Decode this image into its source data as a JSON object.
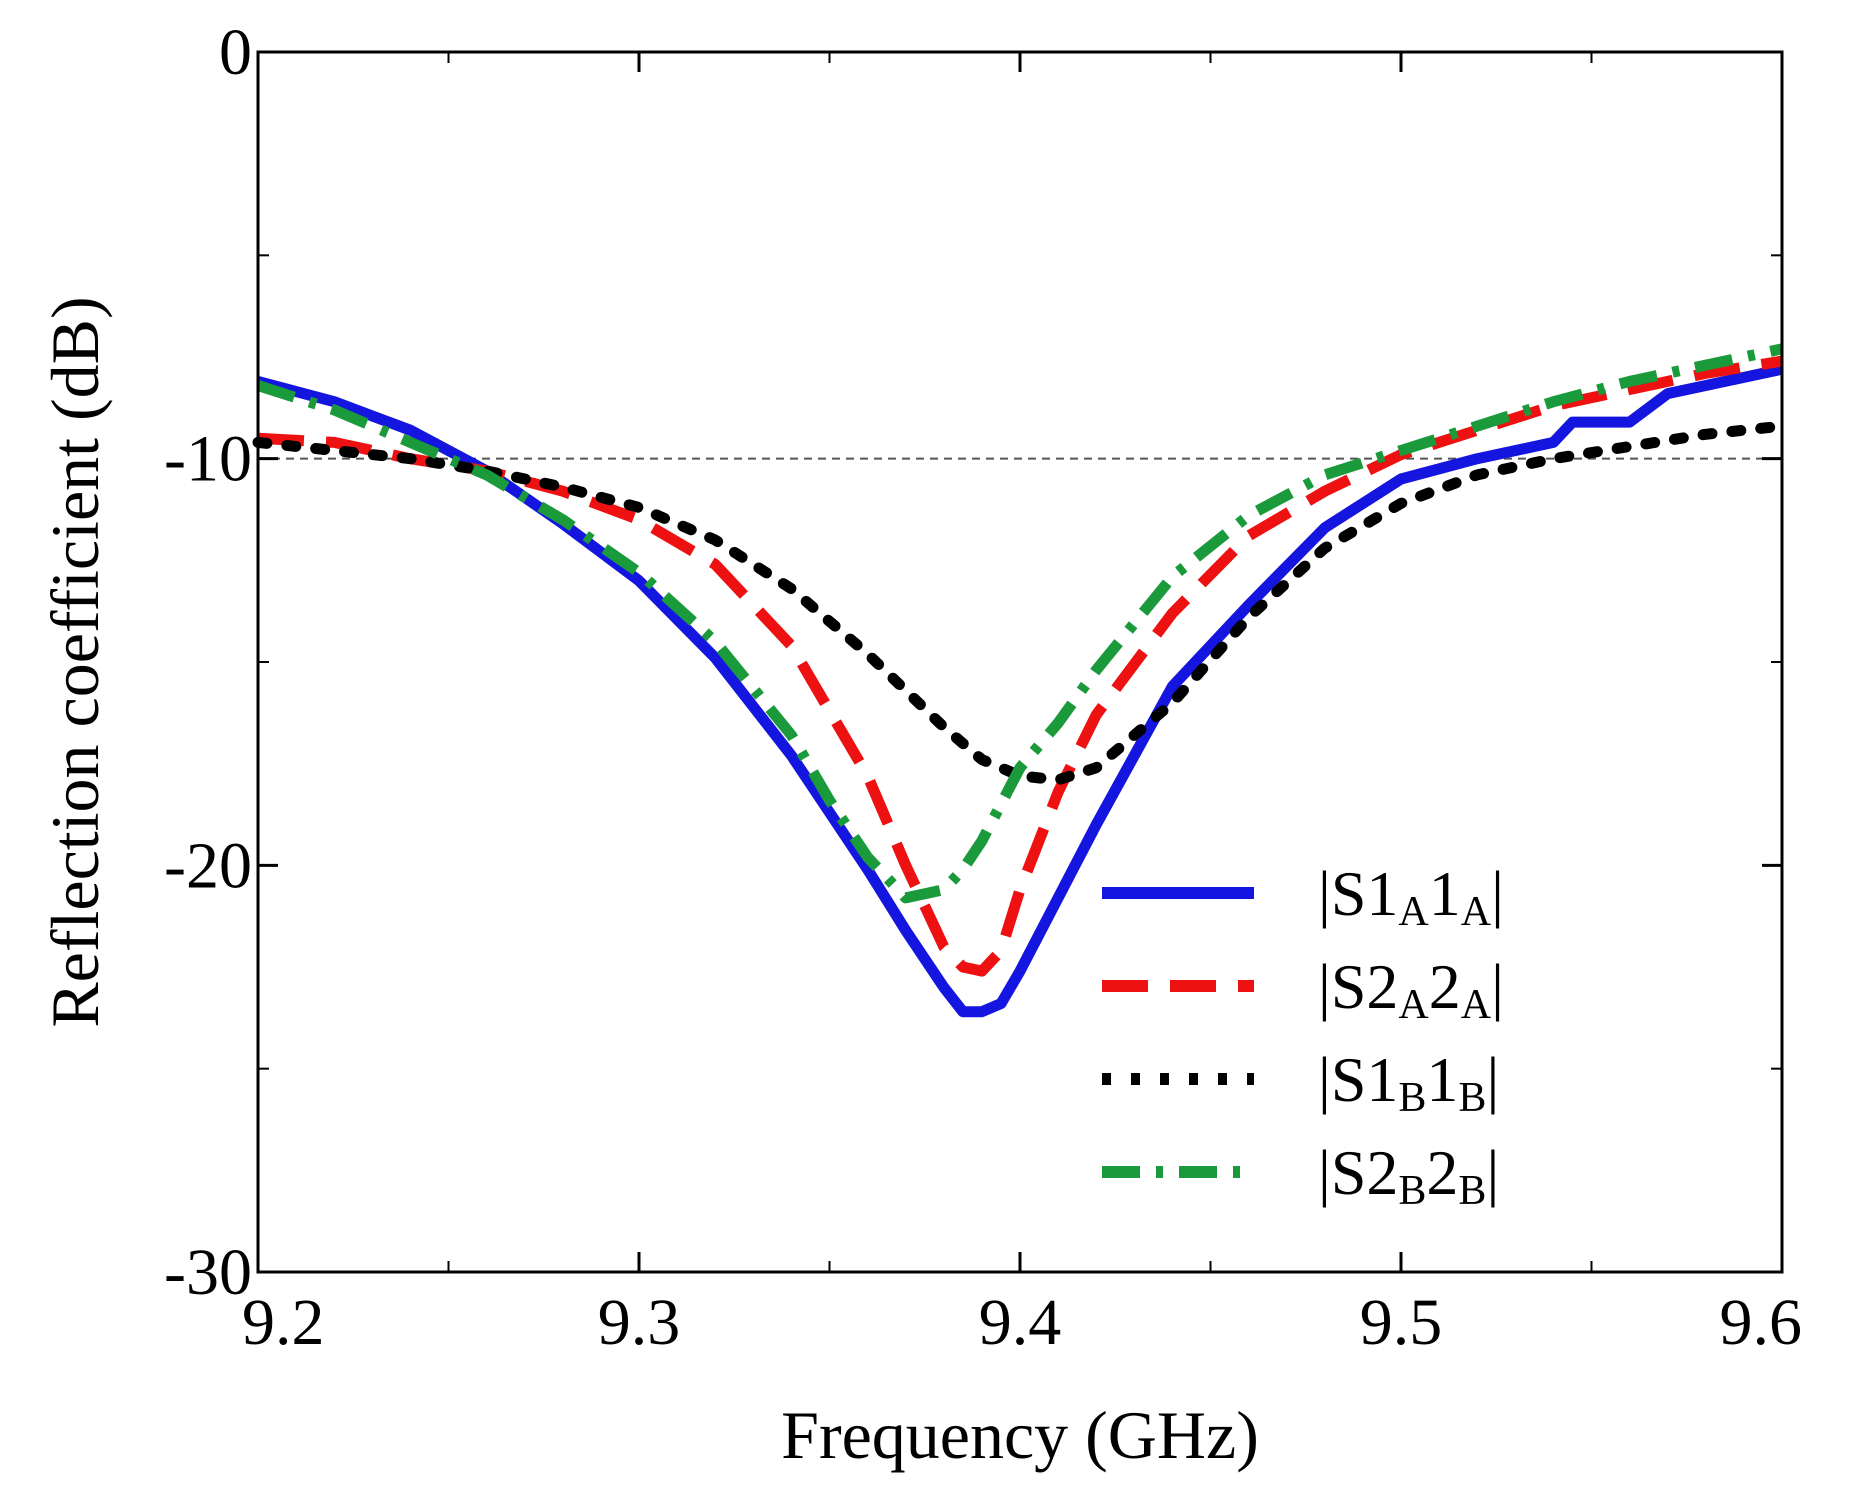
{
  "chart_data": {
    "type": "line",
    "title": "",
    "xlabel": "Frequency (GHz)",
    "ylabel": "Reflection coefficient (dB)",
    "xlim": [
      9.2,
      9.6
    ],
    "ylim": [
      -30,
      0
    ],
    "xticks": [
      9.2,
      9.3,
      9.4,
      9.5,
      9.6
    ],
    "xtick_labels": [
      "9.2",
      "9.3",
      "9.4",
      "9.5",
      "9.6"
    ],
    "xminor": [
      9.25,
      9.35,
      9.45,
      9.55
    ],
    "yticks": [
      0,
      -10,
      -20,
      -30
    ],
    "ytick_labels": [
      "0",
      "-10",
      "-20",
      "-30"
    ],
    "yminor": [
      -5,
      -15,
      -25
    ],
    "grid": false,
    "reference_line": {
      "y": -10,
      "style": "dashed",
      "color": "#555555"
    },
    "legend_position": "lower-right",
    "series": [
      {
        "name": "|S1A1A|",
        "legend_main": "|S1",
        "legend_sub1": "A",
        "legend_mid": "1",
        "legend_sub2": "A",
        "legend_end": "|",
        "color": "#1515e0",
        "style": "solid",
        "x": [
          9.2,
          9.22,
          9.24,
          9.26,
          9.28,
          9.3,
          9.32,
          9.34,
          9.36,
          9.37,
          9.38,
          9.385,
          9.39,
          9.395,
          9.4,
          9.42,
          9.44,
          9.46,
          9.48,
          9.5,
          9.52,
          9.54,
          9.545,
          9.56,
          9.57,
          9.58,
          9.6
        ],
        "y": [
          -8.1,
          -8.6,
          -9.3,
          -10.3,
          -11.6,
          -13.0,
          -14.9,
          -17.3,
          -20.1,
          -21.6,
          -23.0,
          -23.6,
          -23.6,
          -23.4,
          -22.6,
          -19.0,
          -15.6,
          -13.6,
          -11.7,
          -10.5,
          -10.0,
          -9.6,
          -9.1,
          -9.1,
          -8.4,
          -8.2,
          -7.8
        ]
      },
      {
        "name": "|S2A2A|",
        "legend_main": "|S2",
        "legend_sub1": "A",
        "legend_mid": "2",
        "legend_sub2": "A",
        "legend_end": "|",
        "color": "#ee1111",
        "style": "dashed",
        "x": [
          9.2,
          9.22,
          9.24,
          9.26,
          9.28,
          9.3,
          9.32,
          9.34,
          9.36,
          9.37,
          9.38,
          9.385,
          9.39,
          9.395,
          9.4,
          9.41,
          9.42,
          9.44,
          9.46,
          9.48,
          9.5,
          9.52,
          9.54,
          9.56,
          9.58,
          9.6
        ],
        "y": [
          -9.5,
          -9.6,
          -10.0,
          -10.3,
          -10.8,
          -11.5,
          -12.6,
          -14.6,
          -17.8,
          -20.0,
          -22.0,
          -22.5,
          -22.6,
          -22.1,
          -20.6,
          -18.2,
          -16.3,
          -13.8,
          -11.9,
          -10.8,
          -9.9,
          -9.3,
          -8.7,
          -8.3,
          -7.9,
          -7.6
        ]
      },
      {
        "name": "|S1B1B|",
        "legend_main": "|S1",
        "legend_sub1": "B",
        "legend_mid": "1",
        "legend_sub2": "B",
        "legend_end": "|",
        "color": "#000000",
        "style": "dotted",
        "x": [
          9.2,
          9.22,
          9.24,
          9.26,
          9.28,
          9.3,
          9.32,
          9.34,
          9.36,
          9.38,
          9.39,
          9.4,
          9.41,
          9.42,
          9.44,
          9.46,
          9.48,
          9.5,
          9.52,
          9.54,
          9.56,
          9.58,
          9.6
        ],
        "y": [
          -9.6,
          -9.8,
          -10.0,
          -10.3,
          -10.7,
          -11.2,
          -12.0,
          -13.2,
          -14.8,
          -16.6,
          -17.4,
          -17.8,
          -17.9,
          -17.6,
          -16.0,
          -13.9,
          -12.2,
          -11.1,
          -10.4,
          -10.0,
          -9.7,
          -9.4,
          -9.2
        ]
      },
      {
        "name": "|S2B2B|",
        "legend_main": "|S2",
        "legend_sub1": "B",
        "legend_mid": "2",
        "legend_sub2": "B",
        "legend_end": "|",
        "color": "#1a9a3a",
        "style": "dashdot",
        "x": [
          9.2,
          9.22,
          9.24,
          9.26,
          9.28,
          9.3,
          9.32,
          9.34,
          9.35,
          9.36,
          9.37,
          9.38,
          9.385,
          9.39,
          9.4,
          9.41,
          9.42,
          9.44,
          9.46,
          9.48,
          9.5,
          9.52,
          9.54,
          9.56,
          9.58,
          9.6
        ],
        "y": [
          -8.2,
          -8.8,
          -9.6,
          -10.4,
          -11.5,
          -12.8,
          -14.5,
          -16.8,
          -18.4,
          -19.8,
          -20.8,
          -20.6,
          -20.1,
          -19.4,
          -17.6,
          -16.5,
          -15.2,
          -12.9,
          -11.4,
          -10.4,
          -9.8,
          -9.2,
          -8.6,
          -8.1,
          -7.7,
          -7.3
        ]
      }
    ]
  }
}
